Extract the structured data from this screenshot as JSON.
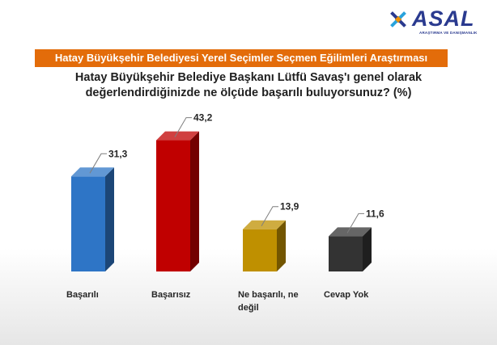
{
  "logo": {
    "name": "ASAL",
    "tagline": "ARAŞTIRMA VE DANIŞMANLIK",
    "icon": "asal-logo-mark"
  },
  "banner": {
    "title": "Hatay Büyükşehir Belediyesi Yerel Seçimler Seçmen Eğilimleri Araştırması",
    "color": "#e36c0a"
  },
  "chart_data": {
    "type": "bar",
    "title": "Hatay Büyükşehir Belediye Başkanı Lütfü Savaş'ı genel olarak değerlendirdiğinizde ne ölçüde başarılı buluyorsunuz? (%)",
    "title_lines": [
      "Hatay Büyükşehir Belediye Başkanı Lütfü Savaş'ı genel olarak",
      "değerlendirdiğinizde ne ölçüde başarılı buluyorsunuz? (%)"
    ],
    "categories": [
      "Başarılı",
      "Başarısız",
      "Ne başarılı, ne değil",
      "Cevap Yok"
    ],
    "category_lines": [
      [
        "Başarılı"
      ],
      [
        "Başarısız"
      ],
      [
        "Ne başarılı, ne",
        "değil"
      ],
      [
        "Cevap Yok"
      ]
    ],
    "values": [
      31.3,
      43.2,
      13.9,
      11.6
    ],
    "value_labels": [
      "31,3",
      "43,2",
      "13,9",
      "11,6"
    ],
    "colors": [
      "#2e75c6",
      "#c00000",
      "#bf9000",
      "#333333"
    ],
    "ylim": [
      0,
      50
    ],
    "style": "3d-column",
    "grid": false,
    "legend": "none"
  }
}
